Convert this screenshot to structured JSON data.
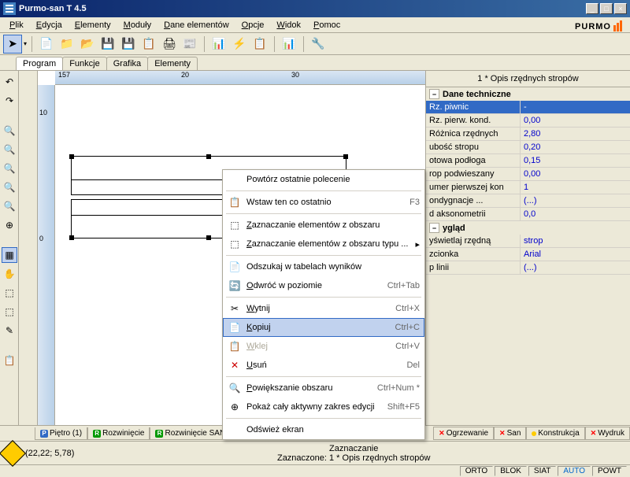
{
  "title": "Purmo-san T 4.5",
  "logo": "PURMO",
  "menu": [
    "Plik",
    "Edycja",
    "Elementy",
    "Moduły",
    "Dane elementów",
    "Opcje",
    "Widok",
    "Pomoc"
  ],
  "topTabs": [
    "Program",
    "Funkcje",
    "Grafika",
    "Elementy"
  ],
  "ruler": {
    "h": [
      "157",
      "20",
      "30"
    ],
    "v": [
      "10",
      "0"
    ]
  },
  "panelTitle": "1 * Opis rzędnych stropów",
  "sections": [
    {
      "title": "Dane techniczne",
      "props": [
        {
          "k": "Rz. piwnic",
          "v": "-",
          "selected": true
        },
        {
          "k": "Rz. pierw. kond.",
          "v": "0,00"
        },
        {
          "k": "Różnica rzędnych",
          "v": "2,80"
        },
        {
          "k": "ubość stropu",
          "v": "0,20"
        },
        {
          "k": "otowa podłoga",
          "v": "0,15"
        },
        {
          "k": "rop podwieszany",
          "v": "0,00"
        },
        {
          "k": "umer pierwszej kon",
          "v": "1"
        },
        {
          "k": "ondygnacje ...",
          "v": "(...)"
        },
        {
          "k": "d aksonometrii",
          "v": "0,0"
        }
      ]
    },
    {
      "title": "ygląd",
      "props": [
        {
          "k": "yświetlaj rzędną",
          "v": "strop"
        },
        {
          "k": "zcionka",
          "v": "Arial"
        },
        {
          "k": "p linii",
          "v": "(...)"
        }
      ]
    }
  ],
  "context": [
    {
      "label": "Powtórz ostatnie polecenie",
      "icon": "",
      "type": "item"
    },
    {
      "type": "sep"
    },
    {
      "label": "Wstaw ten co ostatnio",
      "icon": "📋",
      "shortcut": "F3",
      "type": "item"
    },
    {
      "type": "sep"
    },
    {
      "label": "Zaznaczanie elementów z obszaru",
      "icon": "⬚",
      "type": "item",
      "u": true
    },
    {
      "label": "Zaznaczanie elementów z obszaru typu ...",
      "icon": "⬚",
      "arrow": "▸",
      "type": "item",
      "u": true
    },
    {
      "type": "sep"
    },
    {
      "label": "Odszukaj w tabelach wyników",
      "icon": "📄",
      "type": "item"
    },
    {
      "label": "Odwróć w poziomie",
      "icon": "🔄",
      "shortcut": "Ctrl+Tab",
      "type": "item",
      "u": true
    },
    {
      "type": "sep"
    },
    {
      "label": "Wytnij",
      "icon": "✂",
      "shortcut": "Ctrl+X",
      "type": "item",
      "u": true
    },
    {
      "label": "Kopiuj",
      "icon": "📄",
      "shortcut": "Ctrl+C",
      "type": "item",
      "highlighted": true,
      "u": true
    },
    {
      "label": "Wklej",
      "icon": "📋",
      "shortcut": "Ctrl+V",
      "type": "item",
      "disabled": true,
      "u": true
    },
    {
      "label": "Usuń",
      "icon": "✕",
      "shortcut": "Del",
      "type": "item",
      "u": true,
      "iconColor": "#cc0000"
    },
    {
      "type": "sep"
    },
    {
      "label": "Powiększanie obszaru",
      "icon": "🔍",
      "shortcut": "Ctrl+Num *",
      "type": "item",
      "u": true
    },
    {
      "label": "Pokaż cały aktywny zakres edycji",
      "icon": "⊕",
      "shortcut": "Shift+F5",
      "type": "item"
    },
    {
      "type": "sep"
    },
    {
      "label": "Odśwież ekran",
      "icon": "",
      "type": "item"
    }
  ],
  "bottomTabs": [
    {
      "label": "Piętro (1)",
      "icon": "P",
      "bg": "#316ac5"
    },
    {
      "label": "Rozwinięcie",
      "icon": "R",
      "bg": "#009900"
    },
    {
      "label": "Rozwinięcie SAN",
      "icon": "R",
      "bg": "#009900"
    }
  ],
  "statusTabs": [
    {
      "label": "Ogrzewanie",
      "x": true
    },
    {
      "label": "San",
      "x": true
    },
    {
      "label": "Konstrukcja",
      "dot": "#ffcc00"
    },
    {
      "label": "Wydruk",
      "x": true
    }
  ],
  "status": {
    "coords": "(22,22; 5,78)",
    "centerTitle": "Zaznaczanie",
    "centerText": "Zaznaczone: 1 * Opis rzędnych stropów"
  },
  "bottomStatus": [
    "ORTO",
    "BLOK",
    "SIAT",
    "AUTO",
    "POWT"
  ],
  "autoColor": "#0066cc"
}
